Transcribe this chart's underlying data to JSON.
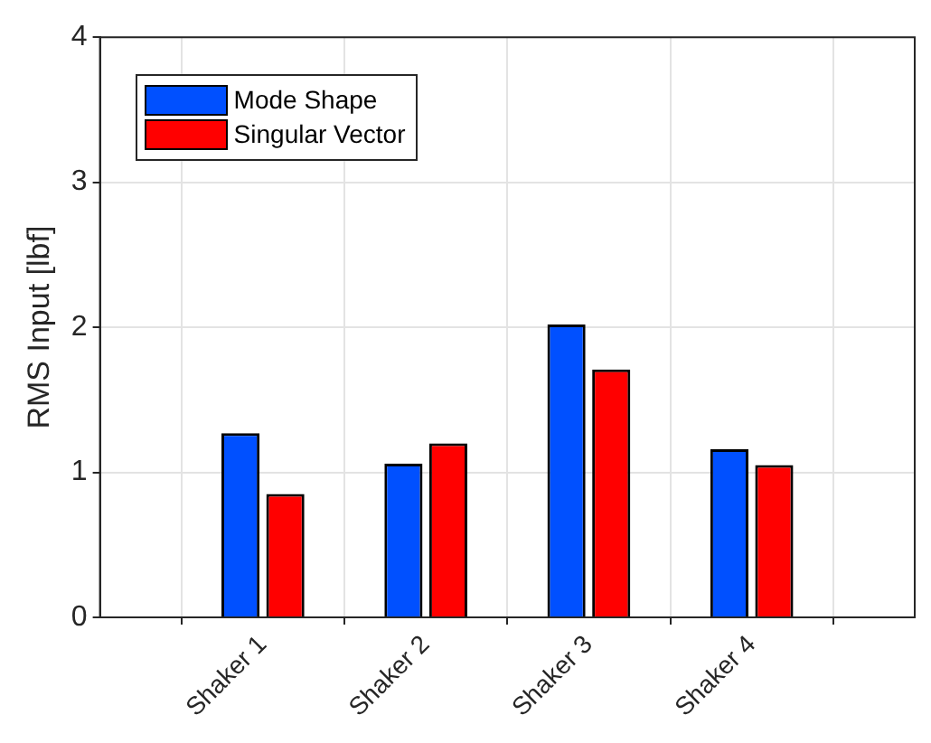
{
  "chart_data": {
    "type": "bar",
    "ylabel": "RMS Input [lbf]",
    "categories": [
      "Shaker 1",
      "Shaker 2",
      "Shaker 3",
      "Shaker 4"
    ],
    "series": [
      {
        "name": "Mode Shape",
        "color": "#0050ff",
        "values": [
          1.27,
          1.06,
          2.02,
          1.16
        ]
      },
      {
        "name": "Singular Vector",
        "color": "#ff0000",
        "values": [
          0.85,
          1.2,
          1.71,
          1.05
        ]
      }
    ],
    "ylim": [
      0,
      4
    ],
    "yticks": [
      0,
      1,
      2,
      3,
      4
    ],
    "grid": true,
    "legend": "top left"
  }
}
